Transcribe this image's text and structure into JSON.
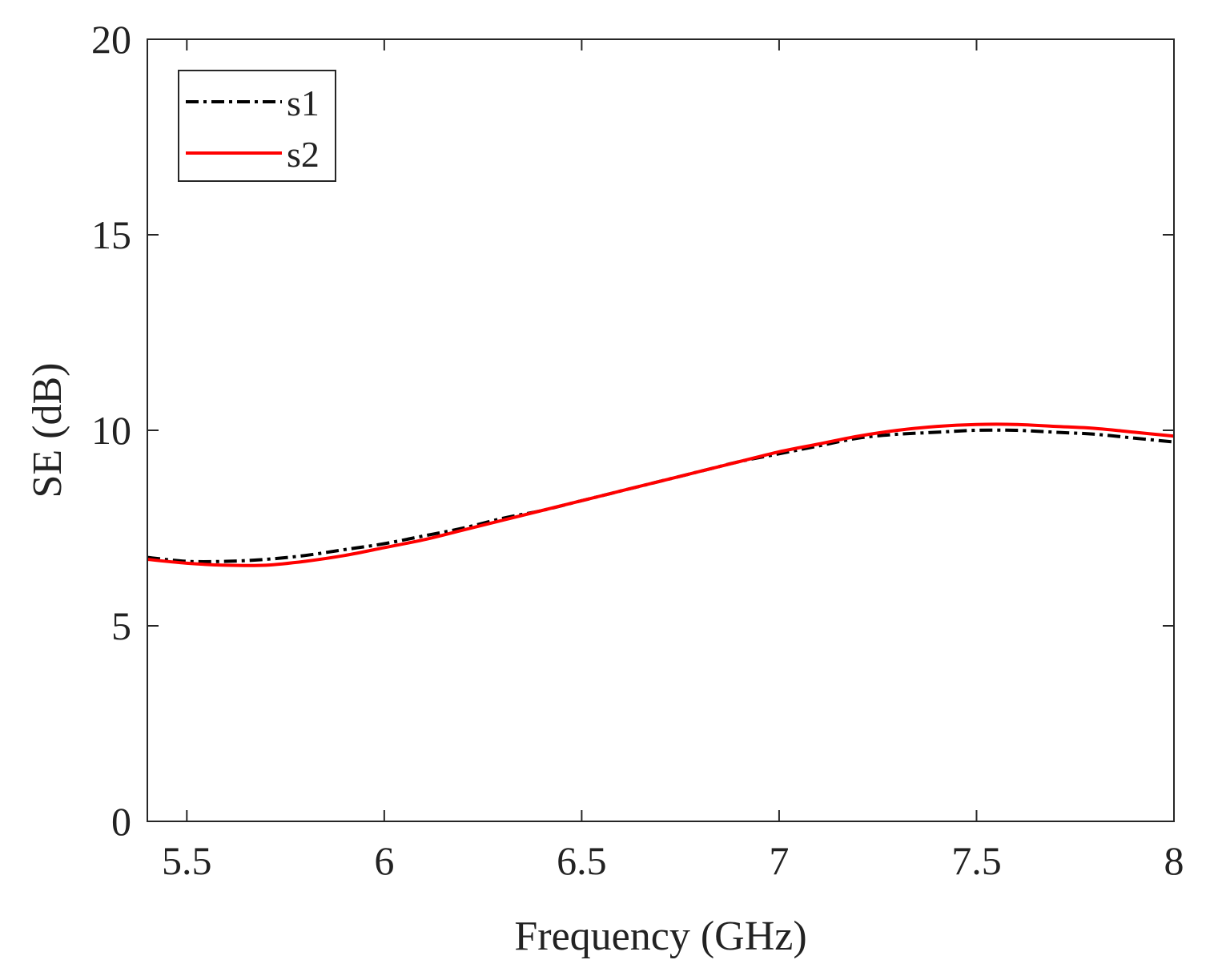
{
  "chart_data": {
    "type": "line",
    "title": "",
    "xlabel": "Frequency (GHz)",
    "ylabel": "SE (dB)",
    "xlim": [
      5.4,
      8.0
    ],
    "ylim": [
      0,
      20
    ],
    "xticks": [
      5.5,
      6,
      6.5,
      7,
      7.5,
      8
    ],
    "xtick_labels": [
      "5.5",
      "6",
      "6.5",
      "7",
      "7.5",
      "8"
    ],
    "yticks": [
      0,
      5,
      10,
      15,
      20
    ],
    "ytick_labels": [
      "0",
      "5",
      "10",
      "15",
      "20"
    ],
    "grid": false,
    "legend_position": "top-left",
    "series": [
      {
        "name": "s1",
        "color": "#000000",
        "style": "dash-dot",
        "x": [
          5.4,
          5.5,
          5.6,
          5.7,
          5.8,
          5.9,
          6.0,
          6.1,
          6.2,
          6.3,
          6.4,
          6.5,
          6.6,
          6.7,
          6.8,
          6.9,
          7.0,
          7.1,
          7.2,
          7.3,
          7.4,
          7.5,
          7.6,
          7.7,
          7.8,
          7.9,
          8.0
        ],
        "y": [
          6.75,
          6.65,
          6.65,
          6.7,
          6.8,
          6.95,
          7.1,
          7.3,
          7.5,
          7.75,
          7.95,
          8.2,
          8.45,
          8.7,
          8.95,
          9.2,
          9.4,
          9.6,
          9.8,
          9.9,
          9.95,
          10.0,
          10.0,
          9.95,
          9.9,
          9.8,
          9.7
        ]
      },
      {
        "name": "s2",
        "color": "#ff0000",
        "style": "solid",
        "x": [
          5.4,
          5.5,
          5.6,
          5.7,
          5.8,
          5.9,
          6.0,
          6.1,
          6.2,
          6.3,
          6.4,
          6.5,
          6.6,
          6.7,
          6.8,
          6.9,
          7.0,
          7.1,
          7.2,
          7.3,
          7.4,
          7.5,
          7.6,
          7.7,
          7.8,
          7.9,
          8.0
        ],
        "y": [
          6.7,
          6.6,
          6.55,
          6.55,
          6.65,
          6.8,
          7.0,
          7.2,
          7.45,
          7.7,
          7.95,
          8.2,
          8.45,
          8.7,
          8.95,
          9.2,
          9.45,
          9.65,
          9.85,
          10.0,
          10.1,
          10.15,
          10.15,
          10.1,
          10.05,
          9.95,
          9.85
        ]
      }
    ]
  }
}
